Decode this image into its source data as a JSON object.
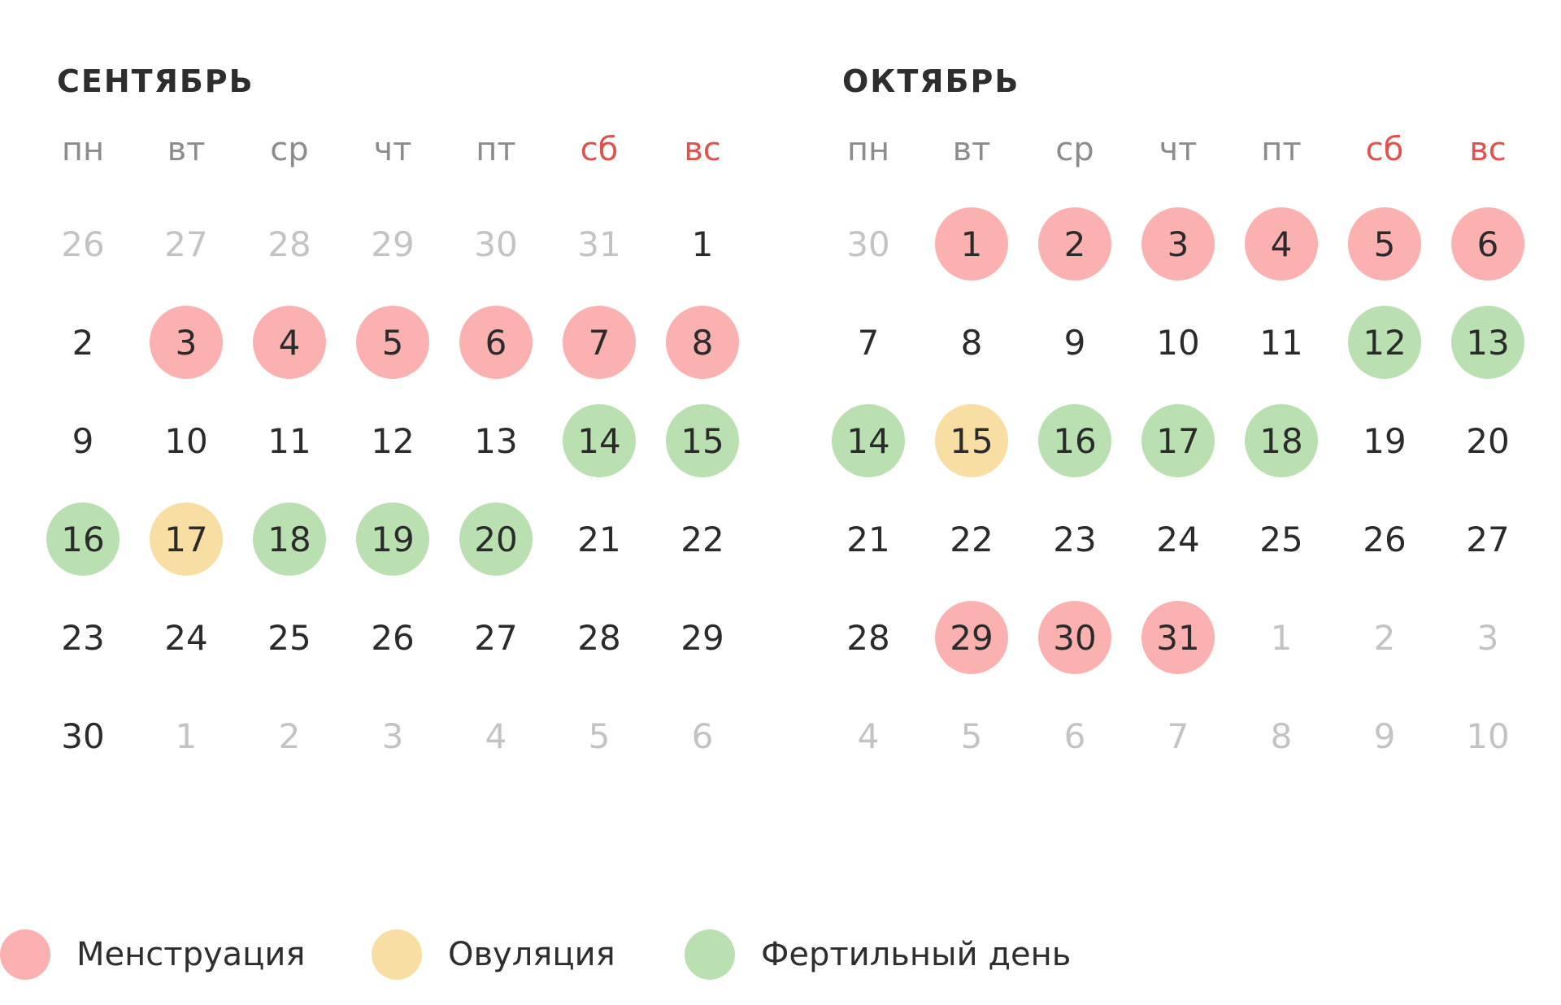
{
  "weekdays": [
    {
      "label": "пн",
      "weekend": false
    },
    {
      "label": "вт",
      "weekend": false
    },
    {
      "label": "ср",
      "weekend": false
    },
    {
      "label": "чт",
      "weekend": false
    },
    {
      "label": "пт",
      "weekend": false
    },
    {
      "label": "сб",
      "weekend": true
    },
    {
      "label": "вс",
      "weekend": true
    }
  ],
  "colors": {
    "menstruation": "#fbb1b0",
    "ovulation": "#f8dea3",
    "fertile": "#badfb1",
    "weekend_label": "#e0524f",
    "out_of_month": "#c3c3c3"
  },
  "months": [
    {
      "title": "СЕНТЯБРЬ",
      "weeks": [
        [
          {
            "d": "26",
            "s": "out"
          },
          {
            "d": "27",
            "s": "out"
          },
          {
            "d": "28",
            "s": "out"
          },
          {
            "d": "29",
            "s": "out"
          },
          {
            "d": "30",
            "s": "out"
          },
          {
            "d": "31",
            "s": "out"
          },
          {
            "d": "1",
            "s": ""
          }
        ],
        [
          {
            "d": "2",
            "s": ""
          },
          {
            "d": "3",
            "s": "menstruation"
          },
          {
            "d": "4",
            "s": "menstruation"
          },
          {
            "d": "5",
            "s": "menstruation"
          },
          {
            "d": "6",
            "s": "menstruation"
          },
          {
            "d": "7",
            "s": "menstruation"
          },
          {
            "d": "8",
            "s": "menstruation"
          }
        ],
        [
          {
            "d": "9",
            "s": ""
          },
          {
            "d": "10",
            "s": ""
          },
          {
            "d": "11",
            "s": ""
          },
          {
            "d": "12",
            "s": ""
          },
          {
            "d": "13",
            "s": ""
          },
          {
            "d": "14",
            "s": "fertile"
          },
          {
            "d": "15",
            "s": "fertile"
          }
        ],
        [
          {
            "d": "16",
            "s": "fertile"
          },
          {
            "d": "17",
            "s": "ovulation"
          },
          {
            "d": "18",
            "s": "fertile"
          },
          {
            "d": "19",
            "s": "fertile"
          },
          {
            "d": "20",
            "s": "fertile"
          },
          {
            "d": "21",
            "s": ""
          },
          {
            "d": "22",
            "s": ""
          }
        ],
        [
          {
            "d": "23",
            "s": ""
          },
          {
            "d": "24",
            "s": ""
          },
          {
            "d": "25",
            "s": ""
          },
          {
            "d": "26",
            "s": ""
          },
          {
            "d": "27",
            "s": ""
          },
          {
            "d": "28",
            "s": ""
          },
          {
            "d": "29",
            "s": ""
          }
        ],
        [
          {
            "d": "30",
            "s": ""
          },
          {
            "d": "1",
            "s": "out"
          },
          {
            "d": "2",
            "s": "out"
          },
          {
            "d": "3",
            "s": "out"
          },
          {
            "d": "4",
            "s": "out"
          },
          {
            "d": "5",
            "s": "out"
          },
          {
            "d": "6",
            "s": "out"
          }
        ]
      ]
    },
    {
      "title": "ОКТЯБРЬ",
      "weeks": [
        [
          {
            "d": "30",
            "s": "out"
          },
          {
            "d": "1",
            "s": "menstruation"
          },
          {
            "d": "2",
            "s": "menstruation"
          },
          {
            "d": "3",
            "s": "menstruation"
          },
          {
            "d": "4",
            "s": "menstruation"
          },
          {
            "d": "5",
            "s": "menstruation"
          },
          {
            "d": "6",
            "s": "menstruation"
          }
        ],
        [
          {
            "d": "7",
            "s": ""
          },
          {
            "d": "8",
            "s": ""
          },
          {
            "d": "9",
            "s": ""
          },
          {
            "d": "10",
            "s": ""
          },
          {
            "d": "11",
            "s": ""
          },
          {
            "d": "12",
            "s": "fertile"
          },
          {
            "d": "13",
            "s": "fertile"
          }
        ],
        [
          {
            "d": "14",
            "s": "fertile"
          },
          {
            "d": "15",
            "s": "ovulation"
          },
          {
            "d": "16",
            "s": "fertile"
          },
          {
            "d": "17",
            "s": "fertile"
          },
          {
            "d": "18",
            "s": "fertile"
          },
          {
            "d": "19",
            "s": ""
          },
          {
            "d": "20",
            "s": ""
          }
        ],
        [
          {
            "d": "21",
            "s": ""
          },
          {
            "d": "22",
            "s": ""
          },
          {
            "d": "23",
            "s": ""
          },
          {
            "d": "24",
            "s": ""
          },
          {
            "d": "25",
            "s": ""
          },
          {
            "d": "26",
            "s": ""
          },
          {
            "d": "27",
            "s": ""
          }
        ],
        [
          {
            "d": "28",
            "s": ""
          },
          {
            "d": "29",
            "s": "menstruation"
          },
          {
            "d": "30",
            "s": "menstruation"
          },
          {
            "d": "31",
            "s": "menstruation"
          },
          {
            "d": "1",
            "s": "out"
          },
          {
            "d": "2",
            "s": "out"
          },
          {
            "d": "3",
            "s": "out"
          }
        ],
        [
          {
            "d": "4",
            "s": "out"
          },
          {
            "d": "5",
            "s": "out"
          },
          {
            "d": "6",
            "s": "out"
          },
          {
            "d": "7",
            "s": "out"
          },
          {
            "d": "8",
            "s": "out"
          },
          {
            "d": "9",
            "s": "out"
          },
          {
            "d": "10",
            "s": "out"
          }
        ]
      ]
    }
  ],
  "legend": {
    "menstruation": "Менструация",
    "ovulation": "Овуляция",
    "fertile": "Фертильный день"
  }
}
